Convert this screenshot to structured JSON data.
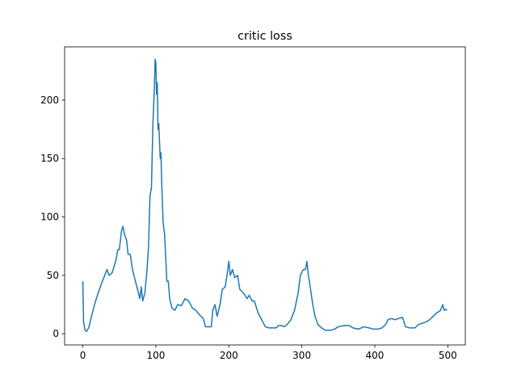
{
  "chart_data": {
    "type": "line",
    "title": "critic loss",
    "x": [
      0,
      1,
      3,
      5,
      8,
      12,
      16,
      20,
      25,
      30,
      33,
      36,
      40,
      45,
      48,
      50,
      53,
      55,
      57,
      60,
      62,
      65,
      68,
      72,
      75,
      78,
      80,
      82,
      85,
      88,
      90,
      92,
      94,
      96,
      98,
      99,
      100,
      101,
      102,
      103,
      104,
      106,
      107,
      108,
      110,
      112,
      114,
      115,
      117,
      119,
      122,
      126,
      130,
      135,
      140,
      145,
      150,
      155,
      160,
      165,
      168,
      172,
      176,
      178,
      181,
      184,
      188,
      191,
      195,
      198,
      200,
      202,
      205,
      208,
      212,
      215,
      220,
      225,
      228,
      232,
      235,
      240,
      245,
      250,
      255,
      260,
      265,
      268,
      272,
      276,
      280,
      285,
      290,
      295,
      298,
      302,
      305,
      307,
      309,
      312,
      315,
      318,
      322,
      327,
      332,
      340,
      345,
      350,
      358,
      365,
      370,
      378,
      385,
      392,
      398,
      405,
      410,
      415,
      418,
      422,
      428,
      432,
      438,
      442,
      448,
      455,
      460,
      465,
      470,
      475,
      480,
      485,
      490,
      493,
      495,
      497,
      499
    ],
    "series": [
      {
        "color": "#1f77b4",
        "values": [
          45,
          10,
          3,
          2,
          5,
          15,
          25,
          33,
          42,
          50,
          55,
          50,
          52,
          62,
          72,
          72,
          88,
          92,
          85,
          80,
          68,
          68,
          55,
          45,
          38,
          30,
          40,
          28,
          35,
          55,
          75,
          118,
          125,
          180,
          210,
          235,
          232,
          205,
          215,
          175,
          180,
          150,
          155,
          130,
          95,
          85,
          60,
          45,
          45,
          30,
          22,
          20,
          25,
          24,
          30,
          28,
          22,
          20,
          16,
          13,
          6,
          6,
          6,
          20,
          25,
          15,
          25,
          38,
          40,
          52,
          62,
          50,
          55,
          48,
          50,
          38,
          35,
          30,
          33,
          28,
          28,
          18,
          12,
          6,
          5,
          5,
          5,
          7,
          7,
          6,
          8,
          12,
          20,
          35,
          50,
          55,
          55,
          62,
          50,
          38,
          25,
          15,
          8,
          5,
          3,
          3,
          4,
          6,
          7,
          7,
          5,
          4,
          6,
          5,
          4,
          4,
          5,
          8,
          12,
          13,
          12,
          13,
          14,
          6,
          5,
          5,
          8,
          9,
          10,
          12,
          15,
          18,
          20,
          25,
          20,
          21,
          20
        ]
      }
    ],
    "xlim": [
      -24.95,
      523.95
    ],
    "ylim": [
      -9.6,
      245.6
    ],
    "xticks": [
      0,
      100,
      200,
      300,
      400,
      500
    ],
    "yticks": [
      0,
      50,
      100,
      150,
      200
    ]
  }
}
